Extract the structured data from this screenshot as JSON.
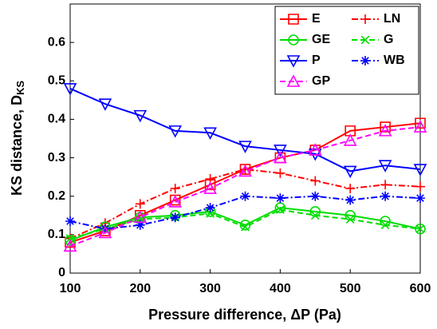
{
  "chart_data": {
    "type": "line",
    "xlabel": "Pressure difference, ΔP (Pa)",
    "ylabel": "KS distance, D",
    "ylabel_subscript": "KS",
    "x": [
      100,
      150,
      200,
      250,
      300,
      350,
      400,
      450,
      500,
      550,
      600
    ],
    "xlim": [
      100,
      600
    ],
    "xticks": [
      100,
      200,
      300,
      400,
      500,
      600
    ],
    "ylim": [
      0,
      0.7
    ],
    "yticks": [
      0,
      0.1,
      0.2,
      0.3,
      0.4,
      0.5,
      0.6
    ],
    "grid": false,
    "legend": "upper right",
    "legend_columns": 2,
    "series": [
      {
        "name": "E",
        "color": "#ff0000",
        "marker": "square",
        "dash": "solid",
        "values": [
          0.08,
          0.11,
          0.15,
          0.19,
          0.23,
          0.27,
          0.3,
          0.32,
          0.37,
          0.38,
          0.39
        ]
      },
      {
        "name": "LN",
        "color": "#ff0000",
        "marker": "plus",
        "dash": "dashdot",
        "values": [
          0.09,
          0.13,
          0.18,
          0.22,
          0.245,
          0.27,
          0.26,
          0.24,
          0.22,
          0.23,
          0.225
        ]
      },
      {
        "name": "GE",
        "color": "#00dd00",
        "marker": "circle",
        "dash": "solid",
        "values": [
          0.085,
          0.12,
          0.145,
          0.15,
          0.16,
          0.125,
          0.17,
          0.16,
          0.15,
          0.135,
          0.115
        ]
      },
      {
        "name": "G",
        "color": "#00dd00",
        "marker": "x",
        "dash": "dashed",
        "values": [
          0.09,
          0.115,
          0.14,
          0.145,
          0.155,
          0.12,
          0.165,
          0.15,
          0.14,
          0.125,
          0.115
        ]
      },
      {
        "name": "P",
        "color": "#0000ff",
        "marker": "triangle-down",
        "dash": "solid",
        "values": [
          0.48,
          0.44,
          0.41,
          0.37,
          0.365,
          0.33,
          0.32,
          0.31,
          0.265,
          0.28,
          0.27
        ]
      },
      {
        "name": "WB",
        "color": "#0000ff",
        "marker": "star",
        "dash": "dashdot",
        "values": [
          0.135,
          0.115,
          0.125,
          0.145,
          0.17,
          0.2,
          0.195,
          0.2,
          0.19,
          0.2,
          0.195
        ]
      },
      {
        "name": "GP",
        "color": "#ff00ff",
        "marker": "triangle-up",
        "dash": "dashed",
        "values": [
          0.07,
          0.105,
          0.145,
          0.185,
          0.22,
          0.265,
          0.3,
          0.32,
          0.345,
          0.37,
          0.38
        ]
      }
    ]
  }
}
